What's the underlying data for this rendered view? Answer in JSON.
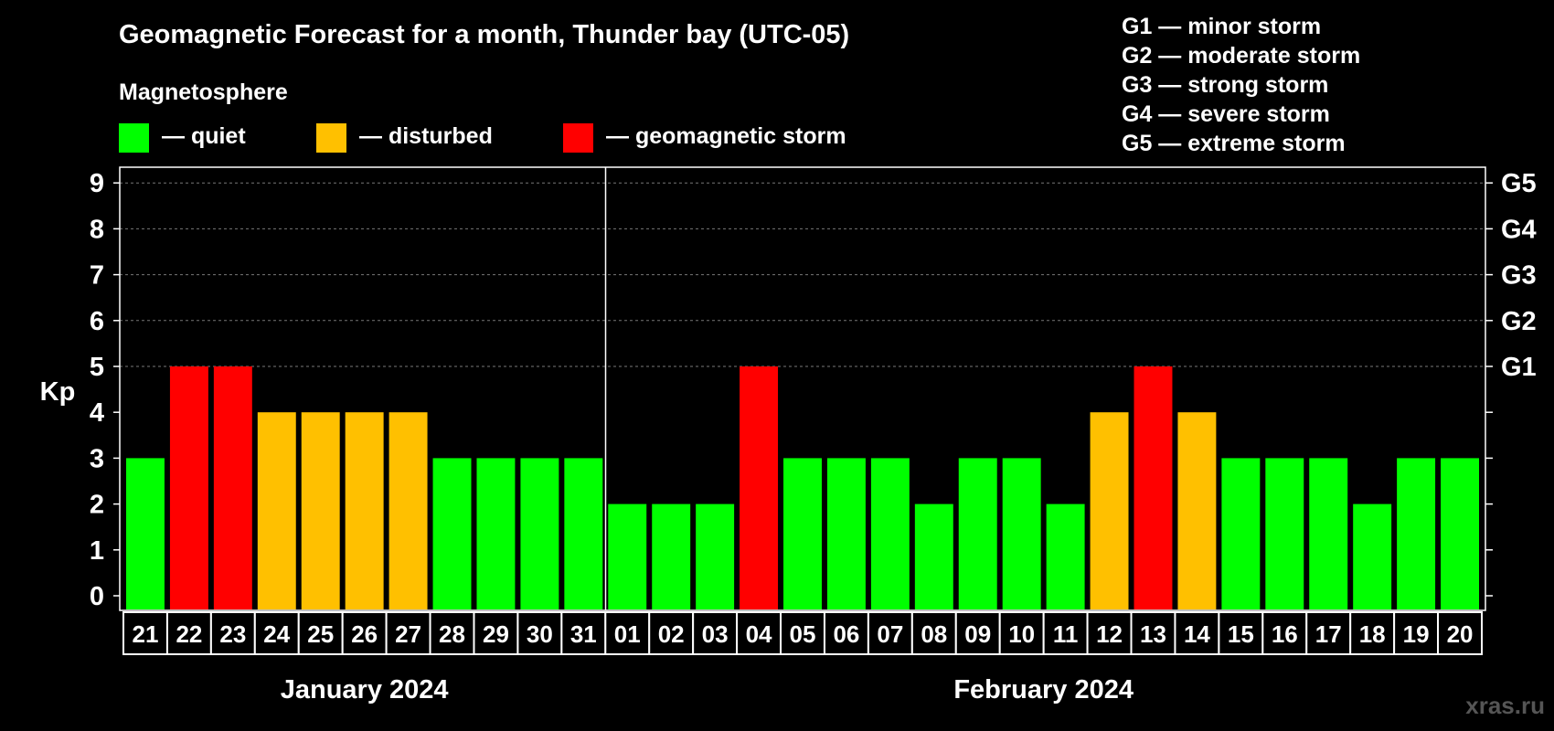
{
  "chart_data": {
    "type": "bar",
    "title": "Geomagnetic Forecast for a month, Thunder bay (UTC-05)",
    "subtitle": "Magnetosphere",
    "ylabel": "Kp",
    "ylim": [
      0,
      9
    ],
    "yticks": [
      "0",
      "1",
      "2",
      "3",
      "4",
      "5",
      "6",
      "7",
      "8",
      "9"
    ],
    "grid": "dashed at 5–9",
    "right_axis_labels": [
      {
        "kp": 5,
        "label": "G1"
      },
      {
        "kp": 6,
        "label": "G2"
      },
      {
        "kp": 7,
        "label": "G3"
      },
      {
        "kp": 8,
        "label": "G4"
      },
      {
        "kp": 9,
        "label": "G5"
      }
    ],
    "legend": [
      {
        "key": "quiet",
        "label": "— quiet",
        "color": "#00ff00"
      },
      {
        "key": "disturbed",
        "label": "— disturbed",
        "color": "#ffc000"
      },
      {
        "key": "storm",
        "label": "— geomagnetic storm",
        "color": "#ff0000"
      }
    ],
    "storm_scale": [
      "G1 — minor storm",
      "G2 — moderate storm",
      "G3 — strong storm",
      "G4 — severe storm",
      "G5 — extreme storm"
    ],
    "months": [
      {
        "label": "January 2024",
        "days": [
          "21",
          "22",
          "23",
          "24",
          "25",
          "26",
          "27",
          "28",
          "29",
          "30",
          "31"
        ]
      },
      {
        "label": "February 2024",
        "days": [
          "01",
          "02",
          "03",
          "04",
          "05",
          "06",
          "07",
          "08",
          "09",
          "10",
          "11",
          "12",
          "13",
          "14",
          "15",
          "16",
          "17",
          "18",
          "19",
          "20"
        ]
      }
    ],
    "categories": [
      "21",
      "22",
      "23",
      "24",
      "25",
      "26",
      "27",
      "28",
      "29",
      "30",
      "31",
      "01",
      "02",
      "03",
      "04",
      "05",
      "06",
      "07",
      "08",
      "09",
      "10",
      "11",
      "12",
      "13",
      "14",
      "15",
      "16",
      "17",
      "18",
      "19",
      "20"
    ],
    "values": [
      3,
      5,
      5,
      4,
      4,
      4,
      4,
      3,
      3,
      3,
      3,
      2,
      2,
      2,
      5,
      3,
      3,
      3,
      2,
      3,
      3,
      2,
      4,
      5,
      4,
      3,
      3,
      3,
      2,
      3,
      3
    ]
  },
  "watermark": "xras.ru"
}
